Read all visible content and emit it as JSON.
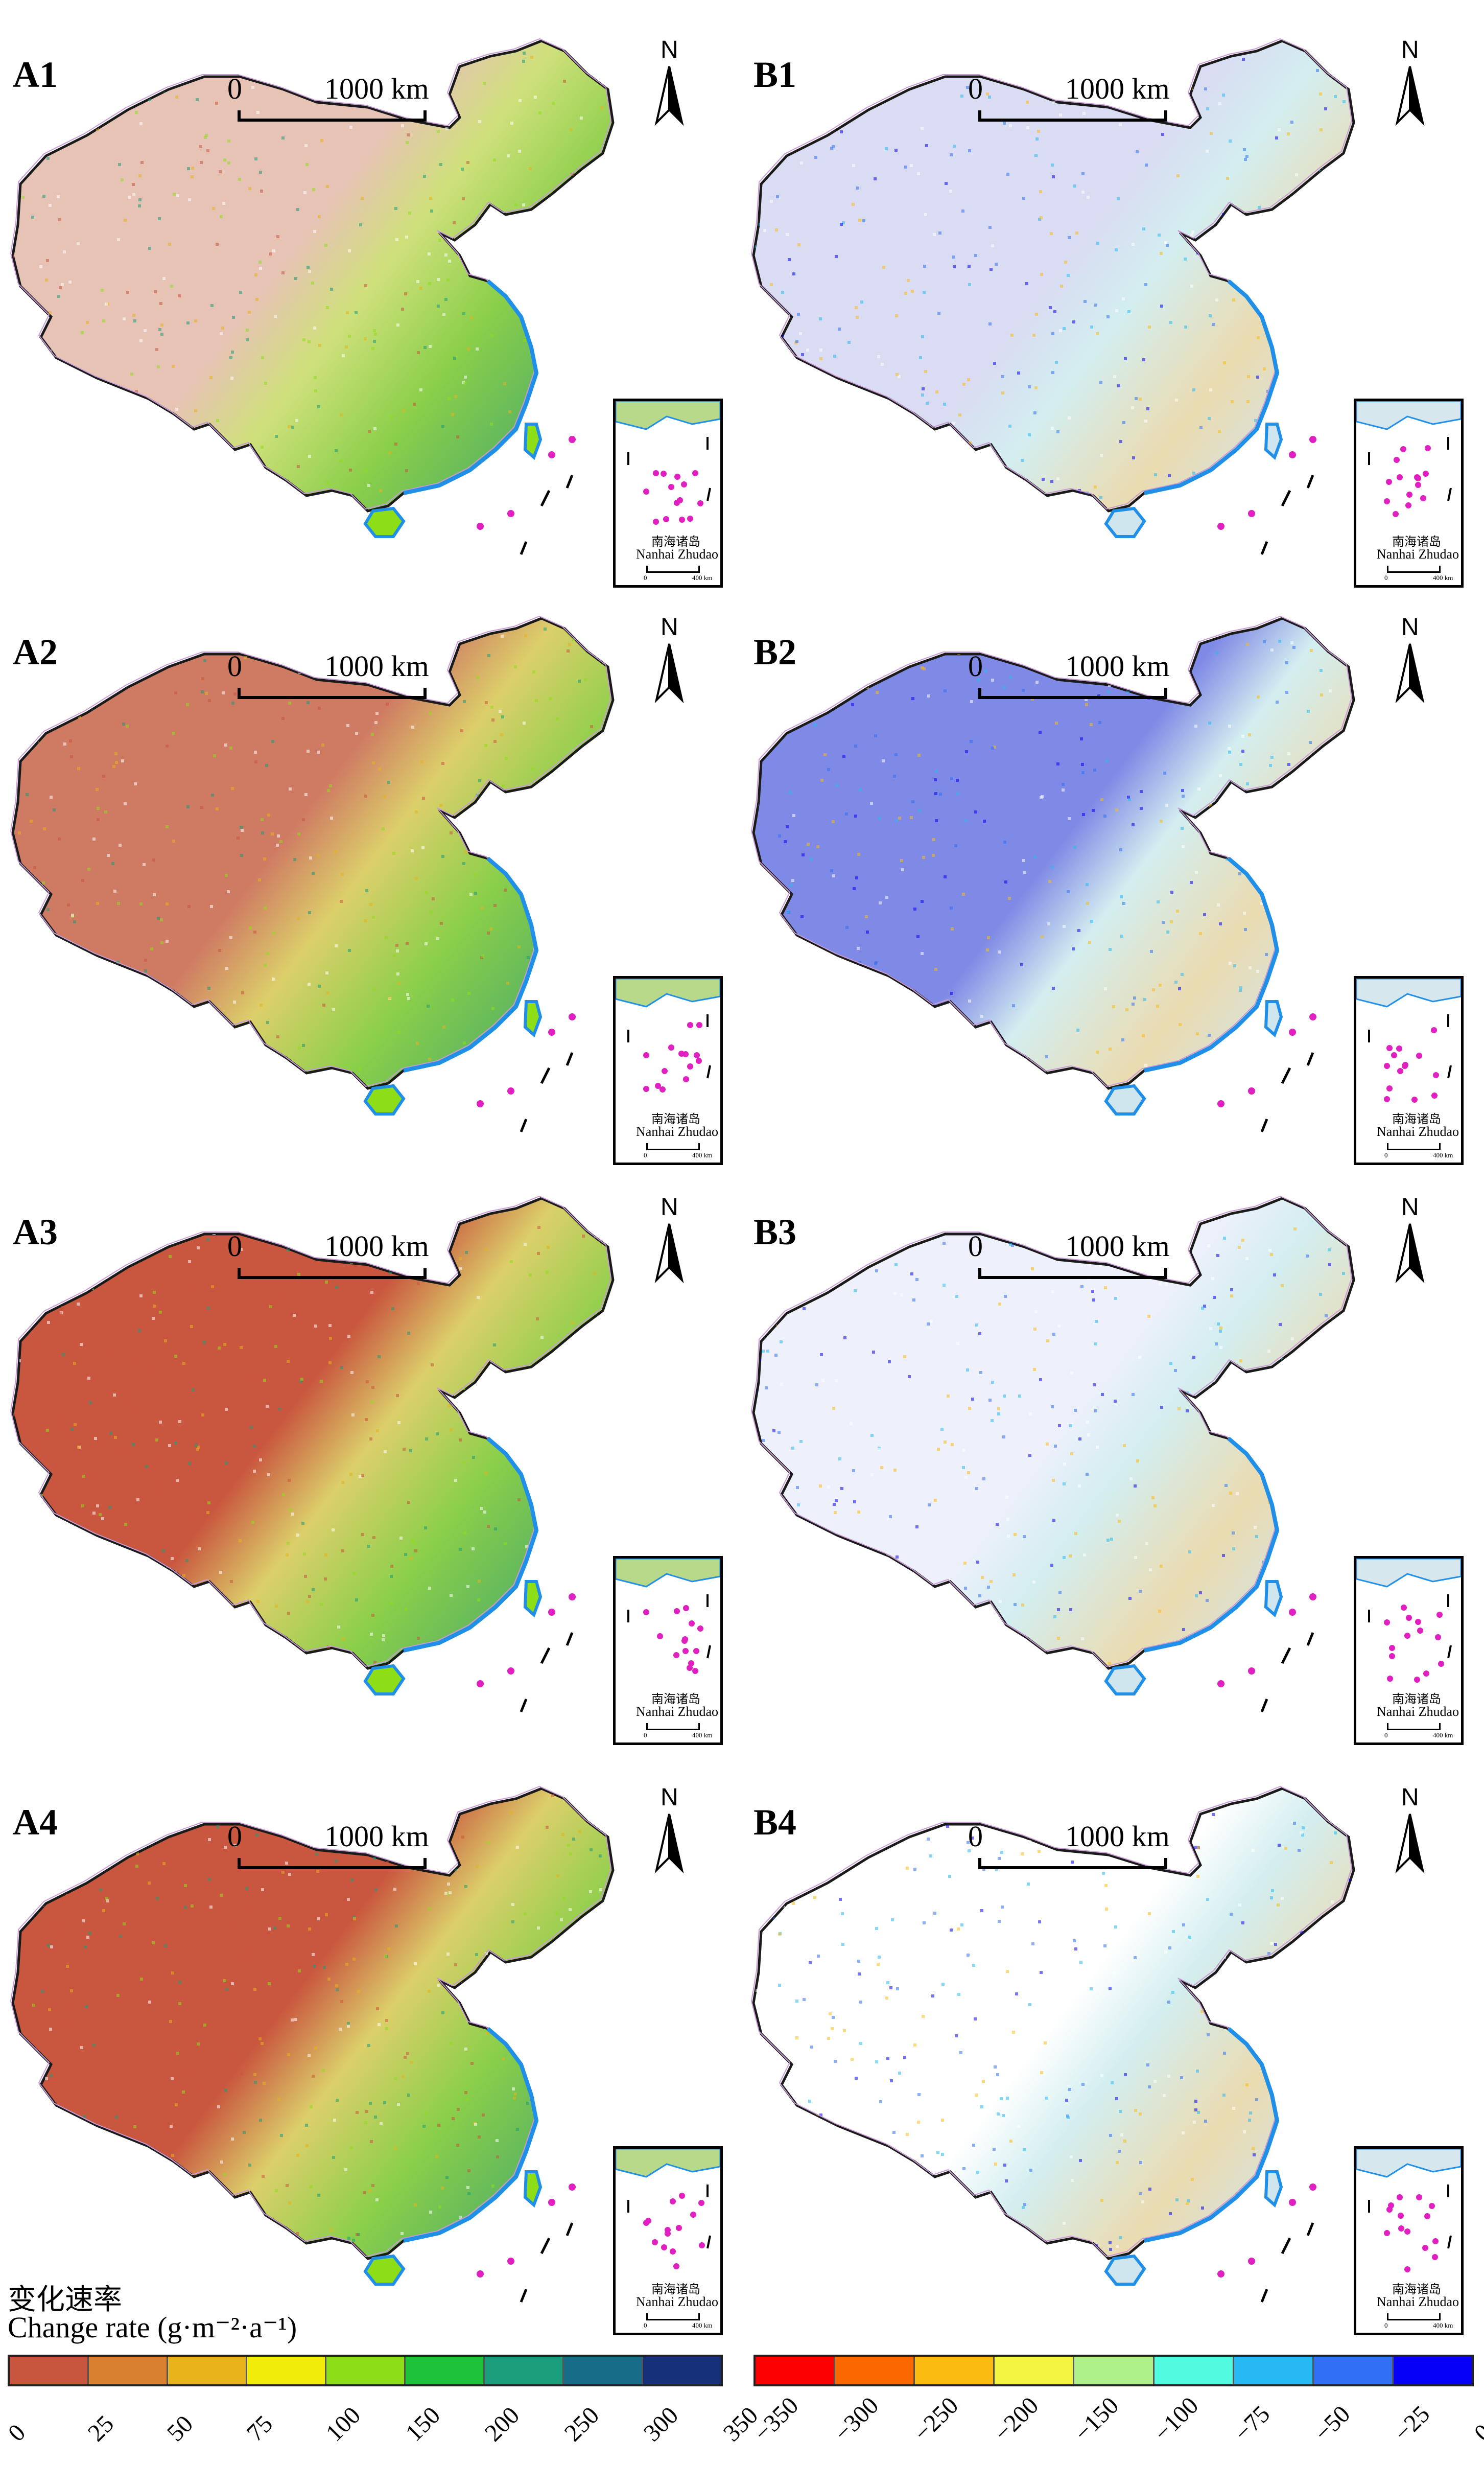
{
  "panels": [
    {
      "label": "A1",
      "scale_zero": "0",
      "scale_text": "1000 km",
      "north": "N",
      "inset_cn": "南海诸岛",
      "inset_en": "Nanhai Zhudao",
      "inset_scale_zero": "0",
      "inset_scale_text": "400 km",
      "palette": "A",
      "level": 1
    },
    {
      "label": "B1",
      "scale_zero": "0",
      "scale_text": "1000 km",
      "north": "N",
      "inset_cn": "南海诸岛",
      "inset_en": "Nanhai Zhudao",
      "inset_scale_zero": "0",
      "inset_scale_text": "400 km",
      "palette": "B",
      "level": 1
    },
    {
      "label": "A2",
      "scale_zero": "0",
      "scale_text": "1000 km",
      "north": "N",
      "inset_cn": "南海诸岛",
      "inset_en": "Nanhai Zhudao",
      "inset_scale_zero": "0",
      "inset_scale_text": "400 km",
      "palette": "A",
      "level": 2
    },
    {
      "label": "B2",
      "scale_zero": "0",
      "scale_text": "1000 km",
      "north": "N",
      "inset_cn": "南海诸岛",
      "inset_en": "Nanhai Zhudao",
      "inset_scale_zero": "0",
      "inset_scale_text": "400 km",
      "palette": "B",
      "level": 2
    },
    {
      "label": "A3",
      "scale_zero": "0",
      "scale_text": "1000 km",
      "north": "N",
      "inset_cn": "南海诸岛",
      "inset_en": "Nanhai Zhudao",
      "inset_scale_zero": "0",
      "inset_scale_text": "400 km",
      "palette": "A",
      "level": 3
    },
    {
      "label": "B3",
      "scale_zero": "0",
      "scale_text": "1000 km",
      "north": "N",
      "inset_cn": "南海诸岛",
      "inset_en": "Nanhai Zhudao",
      "inset_scale_zero": "0",
      "inset_scale_text": "400 km",
      "palette": "B",
      "level": 3
    },
    {
      "label": "A4",
      "scale_zero": "0",
      "scale_text": "1000 km",
      "north": "N",
      "inset_cn": "南海诸岛",
      "inset_en": "Nanhai Zhudao",
      "inset_scale_zero": "0",
      "inset_scale_text": "400 km",
      "palette": "A",
      "level": 4
    },
    {
      "label": "B4",
      "scale_zero": "0",
      "scale_text": "1000 km",
      "north": "N",
      "inset_cn": "南海诸岛",
      "inset_en": "Nanhai Zhudao",
      "inset_scale_zero": "0",
      "inset_scale_text": "400 km",
      "palette": "B",
      "level": 4
    }
  ],
  "legend": {
    "title_cn": "变化速率",
    "title_en": "Change rate (g·m⁻²·a⁻¹)",
    "positive": {
      "ticks": [
        "0",
        "25",
        "50",
        "75",
        "100",
        "150",
        "200",
        "250",
        "300",
        "350"
      ],
      "colors": [
        "#c8553d",
        "#d98030",
        "#e7b21a",
        "#f1ec0a",
        "#8ede17",
        "#1fc33b",
        "#199d7a",
        "#176d88",
        "#17307a"
      ]
    },
    "negative": {
      "ticks": [
        "−350",
        "−300",
        "−250",
        "−200",
        "−150",
        "−100",
        "−75",
        "−50",
        "−25",
        "0"
      ],
      "colors": [
        "#fd0000",
        "#fb6800",
        "#fcbb10",
        "#f2f541",
        "#aef18a",
        "#51fbe0",
        "#26b9f3",
        "#3070f4",
        "#0600f5"
      ]
    }
  }
}
